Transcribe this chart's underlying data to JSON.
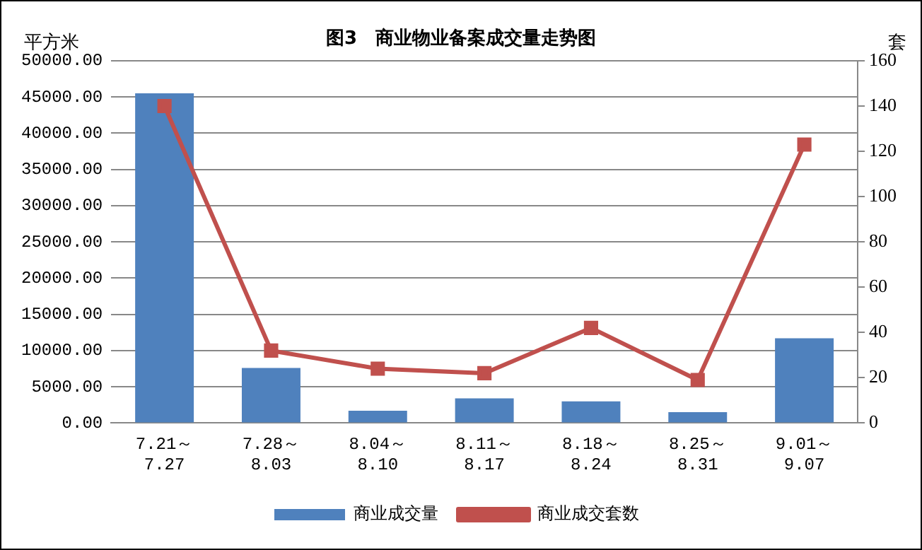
{
  "chart_data": {
    "type": "bar",
    "title": "图3　商业物业备案成交量走势图",
    "ylabel": "平方米",
    "y2label": "套",
    "categories": [
      "7.21～\n7.27",
      "7.28～\n8.03",
      "8.04～\n8.10",
      "8.11～\n8.17",
      "8.18～\n8.24",
      "8.25～\n8.31",
      "9.01～\n9.07"
    ],
    "series": [
      {
        "name": "商业成交量",
        "color": "#4f81bd",
        "values": [
          45500,
          7600,
          1700,
          3400,
          3000,
          1500,
          11700
        ]
      },
      {
        "name": "商业成交套数",
        "type": "line",
        "axis": "y2",
        "color": "#c0504d",
        "marker": "square",
        "values": [
          140,
          32,
          24,
          22,
          42,
          19,
          123
        ]
      }
    ],
    "ylim": [
      0,
      50000
    ],
    "yticks": [
      {
        "value": 0,
        "label": "0.00"
      },
      {
        "value": 5000,
        "label": "5000.00"
      },
      {
        "value": 10000,
        "label": "10000.00"
      },
      {
        "value": 15000,
        "label": "15000.00"
      },
      {
        "value": 20000,
        "label": "20000.00"
      },
      {
        "value": 25000,
        "label": "25000.00"
      },
      {
        "value": 30000,
        "label": "30000.00"
      },
      {
        "value": 35000,
        "label": "35000.00"
      },
      {
        "value": 40000,
        "label": "40000.00"
      },
      {
        "value": 45000,
        "label": "45000.00"
      },
      {
        "value": 50000,
        "label": "50000.00"
      }
    ],
    "y2lim": [
      0,
      160
    ],
    "y2ticks": [
      0,
      20,
      40,
      60,
      80,
      100,
      120,
      140,
      160
    ],
    "grid": "y",
    "legend": "bottom"
  }
}
